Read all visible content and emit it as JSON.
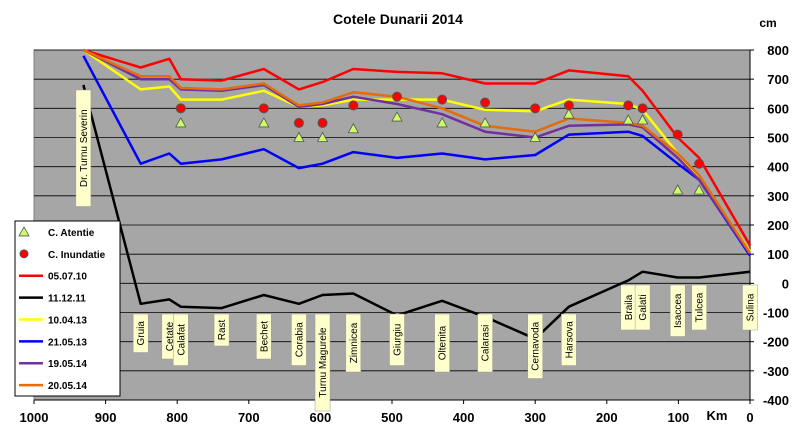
{
  "chart_data": {
    "type": "line",
    "title": "Cotele Dunarii 2014",
    "ylabel": "cm",
    "xlabel": "Km",
    "xlim": [
      1000,
      0
    ],
    "ylim": [
      -400,
      800
    ],
    "x_ticks": [
      1000,
      900,
      800,
      700,
      600,
      500,
      400,
      300,
      200,
      100,
      0
    ],
    "y_ticks": [
      -400,
      -300,
      -200,
      -100,
      0,
      100,
      200,
      300,
      400,
      500,
      600,
      700,
      800
    ],
    "grid": "horizontal",
    "legend_position": "left",
    "colors": {
      "plot_bg": "#a6a6a6",
      "atentie": "#ccff66",
      "inundatie": "#ff0000",
      "label_bg": "#ffffcc"
    },
    "stations": [
      {
        "name": "Dr. Turnu Severin",
        "km": 931
      },
      {
        "name": "Gruia",
        "km": 851
      },
      {
        "name": "Cetate",
        "km": 811
      },
      {
        "name": "Calafat",
        "km": 795
      },
      {
        "name": "Rast",
        "km": 738
      },
      {
        "name": "Bechet",
        "km": 679
      },
      {
        "name": "Corabia",
        "km": 630
      },
      {
        "name": "Turnu Magurele",
        "km": 597
      },
      {
        "name": "Zimnicea",
        "km": 554
      },
      {
        "name": "Giurgiu",
        "km": 493
      },
      {
        "name": "Oltenita",
        "km": 430
      },
      {
        "name": "Calarasi",
        "km": 370
      },
      {
        "name": "Cernavoda",
        "km": 300
      },
      {
        "name": "Harsova",
        "km": 253
      },
      {
        "name": "Braila",
        "km": 170
      },
      {
        "name": "Galati",
        "km": 150
      },
      {
        "name": "Isaccea",
        "km": 101
      },
      {
        "name": "Tulcea",
        "km": 71
      },
      {
        "name": "Sulina",
        "km": 0
      }
    ],
    "series": [
      {
        "name": "C. Atentie",
        "kind": "marker",
        "marker": "triangle",
        "color": "#ccff66",
        "points": [
          [
            795,
            550
          ],
          [
            679,
            550
          ],
          [
            630,
            500
          ],
          [
            597,
            500
          ],
          [
            554,
            530
          ],
          [
            493,
            570
          ],
          [
            430,
            550
          ],
          [
            370,
            550
          ],
          [
            300,
            500
          ],
          [
            253,
            580
          ],
          [
            170,
            560
          ],
          [
            150,
            560
          ],
          [
            101,
            320
          ],
          [
            71,
            320
          ]
        ]
      },
      {
        "name": "C. Inundatie",
        "kind": "marker",
        "marker": "circle",
        "color": "#ff0000",
        "points": [
          [
            795,
            600
          ],
          [
            679,
            600
          ],
          [
            630,
            550
          ],
          [
            597,
            550
          ],
          [
            554,
            610
          ],
          [
            493,
            640
          ],
          [
            430,
            630
          ],
          [
            370,
            620
          ],
          [
            300,
            600
          ],
          [
            253,
            610
          ],
          [
            170,
            610
          ],
          [
            150,
            600
          ],
          [
            101,
            510
          ],
          [
            71,
            410
          ]
        ]
      },
      {
        "name": "05.07.10",
        "kind": "line",
        "color": "#ff0000",
        "points": [
          [
            931,
            800
          ],
          [
            851,
            740
          ],
          [
            811,
            770
          ],
          [
            795,
            700
          ],
          [
            738,
            695
          ],
          [
            679,
            735
          ],
          [
            630,
            665
          ],
          [
            597,
            690
          ],
          [
            554,
            735
          ],
          [
            493,
            725
          ],
          [
            430,
            720
          ],
          [
            370,
            685
          ],
          [
            300,
            685
          ],
          [
            253,
            730
          ],
          [
            170,
            710
          ],
          [
            150,
            660
          ],
          [
            101,
            500
          ],
          [
            71,
            430
          ],
          [
            0,
            130
          ]
        ]
      },
      {
        "name": "11.12.11",
        "kind": "line",
        "color": "#000000",
        "points": [
          [
            931,
            680
          ],
          [
            851,
            -70
          ],
          [
            811,
            -55
          ],
          [
            795,
            -80
          ],
          [
            738,
            -85
          ],
          [
            679,
            -40
          ],
          [
            630,
            -70
          ],
          [
            597,
            -40
          ],
          [
            554,
            -35
          ],
          [
            493,
            -110
          ],
          [
            430,
            -60
          ],
          [
            370,
            -115
          ],
          [
            300,
            -190
          ],
          [
            253,
            -80
          ],
          [
            170,
            10
          ],
          [
            150,
            40
          ],
          [
            101,
            20
          ],
          [
            71,
            20
          ],
          [
            0,
            40
          ]
        ]
      },
      {
        "name": "10.04.13",
        "kind": "line",
        "color": "#ffff00",
        "points": [
          [
            931,
            800
          ],
          [
            851,
            665
          ],
          [
            811,
            675
          ],
          [
            795,
            630
          ],
          [
            738,
            630
          ],
          [
            679,
            660
          ],
          [
            630,
            605
          ],
          [
            597,
            610
          ],
          [
            554,
            630
          ],
          [
            493,
            630
          ],
          [
            430,
            630
          ],
          [
            370,
            595
          ],
          [
            300,
            590
          ],
          [
            253,
            630
          ],
          [
            170,
            615
          ],
          [
            150,
            595
          ],
          [
            101,
            445
          ],
          [
            71,
            365
          ],
          [
            0,
            110
          ]
        ]
      },
      {
        "name": "21.05.13",
        "kind": "line",
        "color": "#0000ff",
        "points": [
          [
            931,
            780
          ],
          [
            851,
            410
          ],
          [
            811,
            445
          ],
          [
            795,
            410
          ],
          [
            738,
            425
          ],
          [
            679,
            460
          ],
          [
            630,
            395
          ],
          [
            597,
            410
          ],
          [
            554,
            450
          ],
          [
            493,
            430
          ],
          [
            430,
            445
          ],
          [
            370,
            425
          ],
          [
            300,
            440
          ],
          [
            253,
            510
          ],
          [
            170,
            520
          ],
          [
            150,
            505
          ],
          [
            101,
            410
          ],
          [
            71,
            355
          ],
          [
            0,
            95
          ]
        ]
      },
      {
        "name": "19.05.14",
        "kind": "line",
        "color": "#7030a0",
        "points": [
          [
            931,
            800
          ],
          [
            851,
            700
          ],
          [
            811,
            700
          ],
          [
            795,
            665
          ],
          [
            738,
            660
          ],
          [
            679,
            680
          ],
          [
            630,
            605
          ],
          [
            597,
            615
          ],
          [
            554,
            640
          ],
          [
            493,
            615
          ],
          [
            430,
            580
          ],
          [
            370,
            520
          ],
          [
            300,
            500
          ],
          [
            253,
            540
          ],
          [
            170,
            545
          ],
          [
            150,
            535
          ],
          [
            101,
            430
          ],
          [
            71,
            355
          ],
          [
            0,
            100
          ]
        ]
      },
      {
        "name": "20.05.14",
        "kind": "line",
        "color": "#e46c0a",
        "points": [
          [
            931,
            800
          ],
          [
            851,
            710
          ],
          [
            811,
            710
          ],
          [
            795,
            670
          ],
          [
            738,
            665
          ],
          [
            679,
            685
          ],
          [
            630,
            610
          ],
          [
            597,
            620
          ],
          [
            554,
            655
          ],
          [
            493,
            640
          ],
          [
            430,
            600
          ],
          [
            370,
            540
          ],
          [
            300,
            520
          ],
          [
            253,
            565
          ],
          [
            170,
            550
          ],
          [
            150,
            540
          ],
          [
            101,
            445
          ],
          [
            71,
            370
          ],
          [
            0,
            105
          ]
        ]
      }
    ]
  }
}
